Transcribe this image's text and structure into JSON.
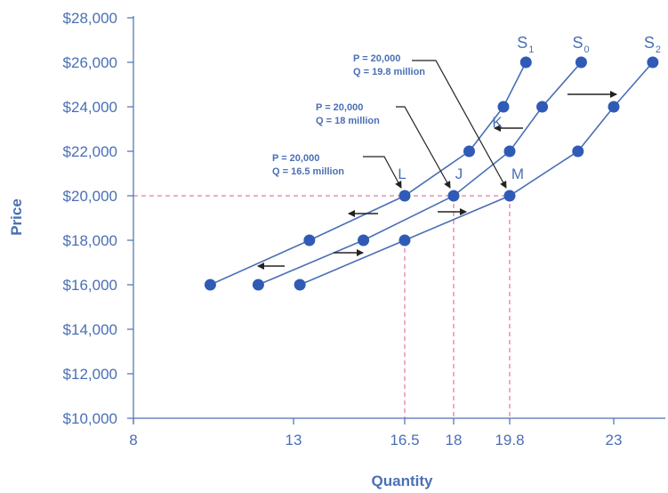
{
  "chart_data": {
    "type": "line",
    "xlabel": "Quantity",
    "ylabel": "Price",
    "xlim": [
      8,
      24.6
    ],
    "ylim": [
      10000,
      28000
    ],
    "x_ticks": [
      "8",
      "13",
      "16.5",
      "18",
      "19.8",
      "23"
    ],
    "y_ticks": [
      "$10,000",
      "$12,000",
      "$14,000",
      "$16,000",
      "$18,000",
      "$20,000",
      "$22,000",
      "$24,000",
      "$26,000",
      "$28,000"
    ],
    "series": [
      {
        "name_main": "S",
        "name_sub": "1",
        "points": [
          [
            10.4,
            16000
          ],
          [
            13.5,
            18000
          ],
          [
            16.5,
            20000
          ],
          [
            18.5,
            22000
          ],
          [
            19.6,
            24000
          ],
          [
            20.3,
            26000
          ]
        ]
      },
      {
        "name_main": "S",
        "name_sub": "0",
        "points": [
          [
            11.9,
            16000
          ],
          [
            15.2,
            18000
          ],
          [
            18,
            20000
          ],
          [
            19.8,
            22000
          ],
          [
            20.8,
            24000
          ],
          [
            22,
            26000
          ]
        ]
      },
      {
        "name_main": "S",
        "name_sub": "2",
        "points": [
          [
            13.2,
            16000
          ],
          [
            16.5,
            18000
          ],
          [
            19.8,
            20000
          ],
          [
            21.9,
            22000
          ],
          [
            23,
            24000
          ],
          [
            24.2,
            26000
          ]
        ]
      }
    ],
    "point_labels": [
      {
        "text": "L",
        "x": 16.5,
        "y": 20000
      },
      {
        "text": "J",
        "x": 18,
        "y": 20000
      },
      {
        "text": "M",
        "x": 19.8,
        "y": 20000
      },
      {
        "text": "K",
        "x": 19.8,
        "y": 22000
      }
    ],
    "callouts": [
      {
        "price": "P = 20,000",
        "quantity": "Q = 16.5 million",
        "target_x": 16.5,
        "target_y": 20000
      },
      {
        "price": "P = 20,000",
        "quantity": "Q = 18 million",
        "target_x": 18,
        "target_y": 20000
      },
      {
        "price": "P = 20,000",
        "quantity": "Q = 19.8 million",
        "target_x": 19.8,
        "target_y": 20000
      }
    ],
    "reference_line_y": 20000,
    "reference_lines_x": [
      16.5,
      18,
      19.8
    ],
    "colors": {
      "series": "#4a6fb5",
      "points": "#2f5bb7",
      "text": "#4a6fb5",
      "reference": "#e0569a",
      "arrow": "#222222"
    }
  }
}
